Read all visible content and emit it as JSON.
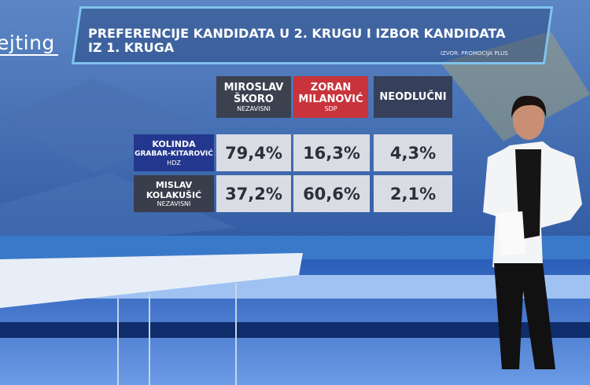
{
  "logo": "ejting",
  "header": {
    "title": [
      "PREFERENCIJE KANDIDATA U 2. KRUGU I IZBOR KANDIDATA",
      "IZ 1. KRUGA"
    ],
    "source": "IZVOR: PROMOCIJA PLUS"
  },
  "table": {
    "columns": [
      {
        "name": [
          "MIROSLAV",
          "ŠKORO"
        ],
        "party": "NEZAVISNI"
      },
      {
        "name": [
          "ZORAN",
          "MILANOVIĆ"
        ],
        "party": "SDP"
      },
      {
        "name": [
          "NEODLUČNI"
        ]
      }
    ],
    "rows": [
      {
        "name": [
          "KOLINDA",
          "GRABAR-KITAROVIĆ"
        ],
        "party": "HDZ",
        "cells": [
          "79,4%",
          "16,3%",
          "4,3%"
        ]
      },
      {
        "name": [
          "MISLAV",
          "KOLAKUŠIĆ"
        ],
        "party": "NEZAVISNI",
        "cells": [
          "37,2%",
          "60,6%",
          "2,1%"
        ]
      }
    ]
  }
}
